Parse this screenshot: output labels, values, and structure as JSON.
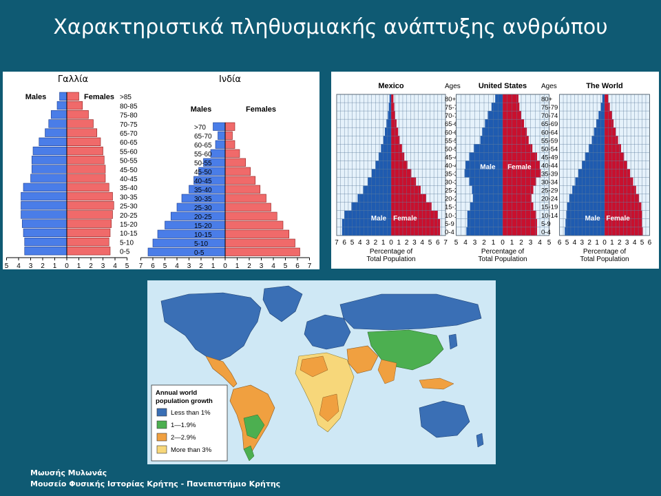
{
  "slide": {
    "title": "Χαρακτηριστικά πληθυσμιακής ανάπτυξης ανθρώπου",
    "footer_line1": "Μωυσής Μυλωνάς",
    "footer_line2": "Μουσείο Φυσικής Ιστορίας Κρήτης - Πανεπιστήμιο Κρήτης"
  },
  "colors": {
    "male": "#4a7de8",
    "female": "#f06a6a",
    "grid_male": "#1f5bb0",
    "grid_female": "#c8102e",
    "ocean": "#cfe8f5",
    "land_blue": "#3a6fb5",
    "land_green": "#4caf50",
    "land_orange": "#f0a040",
    "land_yellow": "#f7d77a"
  },
  "chart_data": [
    {
      "type": "bar",
      "title": "Γαλλία",
      "male_label": "Males",
      "female_label": "Females",
      "categories": [
        ">85",
        "80-85",
        "75-80",
        "70-75",
        "65-70",
        "60-65",
        "55-60",
        "50-55",
        "45-50",
        "40-45",
        "35-40",
        "30-35",
        "25-30",
        "20-25",
        "15-20",
        "10-15",
        "5-10",
        "0-5"
      ],
      "series": [
        {
          "name": "Males",
          "values": [
            0.6,
            0.8,
            1.3,
            1.5,
            1.8,
            2.3,
            2.8,
            2.9,
            2.9,
            3.0,
            3.6,
            3.8,
            3.8,
            3.8,
            3.7,
            3.6,
            3.5,
            3.5
          ]
        },
        {
          "name": "Females",
          "values": [
            1.0,
            1.3,
            1.8,
            2.2,
            2.5,
            2.8,
            3.0,
            3.1,
            3.2,
            3.2,
            3.5,
            3.8,
            3.9,
            3.8,
            3.7,
            3.6,
            3.5,
            3.6
          ]
        }
      ],
      "x_ticks": [
        "5",
        "4",
        "3",
        "2",
        "1",
        "0",
        "1",
        "2",
        "3",
        "4",
        "5"
      ]
    },
    {
      "type": "bar",
      "title": "Ινδία",
      "male_label": "Males",
      "female_label": "Females",
      "categories": [
        ">70",
        "65-70",
        "60-65",
        "55-60",
        "50-55",
        "45-50",
        "40-45",
        "35-40",
        "30-35",
        "25-30",
        "20-25",
        "15-20",
        "10-15",
        "5-10",
        "0-5"
      ],
      "series": [
        {
          "name": "Males",
          "values": [
            1.0,
            0.6,
            0.8,
            1.2,
            1.8,
            2.2,
            2.6,
            3.0,
            3.6,
            4.0,
            4.5,
            5.0,
            5.6,
            6.0,
            6.4
          ]
        },
        {
          "name": "Females",
          "values": [
            0.8,
            0.6,
            0.8,
            1.2,
            1.7,
            2.1,
            2.5,
            2.9,
            3.4,
            3.8,
            4.3,
            4.8,
            5.3,
            5.8,
            6.2
          ]
        }
      ],
      "x_ticks": [
        "7",
        "6",
        "5",
        "4",
        "3",
        "2",
        "1",
        "0",
        "1",
        "2",
        "3",
        "4",
        "5",
        "6",
        "7"
      ]
    },
    {
      "type": "bar",
      "title": "Mexico",
      "ages_label": "Ages",
      "male_label": "Male",
      "female_label": "Female",
      "xlabel": "Percentage of Total Population",
      "categories": [
        "80+",
        "75-79",
        "70-74",
        "65-69",
        "60-64",
        "55-59",
        "50-54",
        "45-49",
        "40-44",
        "35-39",
        "30-34",
        "25-29",
        "20-24",
        "15-19",
        "10-14",
        "5-9",
        "0-4"
      ],
      "series": [
        {
          "name": "Male",
          "values": [
            0.2,
            0.3,
            0.4,
            0.6,
            0.8,
            1.0,
            1.3,
            1.6,
            2.0,
            2.5,
            3.0,
            3.6,
            4.3,
            5.1,
            6.0,
            6.3,
            6.3
          ]
        },
        {
          "name": "Female",
          "values": [
            0.3,
            0.4,
            0.5,
            0.7,
            0.9,
            1.1,
            1.4,
            1.7,
            2.1,
            2.6,
            3.2,
            3.8,
            4.5,
            5.2,
            6.0,
            6.3,
            6.3
          ]
        }
      ],
      "x_ticks": [
        "7",
        "6",
        "5",
        "4",
        "3",
        "2",
        "1",
        "0",
        "1",
        "2",
        "3",
        "4",
        "5",
        "6",
        "7"
      ]
    },
    {
      "type": "bar",
      "title": "United States",
      "ages_label": "Ages",
      "male_label": "Male",
      "female_label": "Female",
      "xlabel": "Percentage of Total Population",
      "categories": [
        "80+",
        "75-79",
        "70-74",
        "65-69",
        "60-64",
        "55-59",
        "50-54",
        "45-49",
        "40-44",
        "35-39",
        "30-34",
        "25-29",
        "20-24",
        "15-19",
        "10-14",
        "5-9",
        "0-4"
      ],
      "series": [
        {
          "name": "Male",
          "values": [
            0.8,
            1.2,
            1.6,
            1.9,
            2.2,
            2.4,
            3.1,
            3.6,
            4.0,
            4.1,
            3.6,
            3.3,
            3.2,
            3.5,
            3.8,
            3.8,
            3.9
          ]
        },
        {
          "name": "Female",
          "values": [
            1.7,
            1.8,
            2.0,
            2.3,
            2.6,
            2.8,
            3.2,
            3.7,
            4.0,
            4.1,
            3.6,
            3.3,
            3.1,
            3.3,
            3.6,
            3.7,
            3.7
          ]
        }
      ],
      "x_ticks": [
        "5",
        "4",
        "3",
        "2",
        "1",
        "0",
        "1",
        "2",
        "3",
        "4",
        "5"
      ]
    },
    {
      "type": "bar",
      "title": "The World",
      "ages_label": "Ages",
      "male_label": "Male",
      "female_label": "Female",
      "xlabel": "Percentage of Total Population",
      "categories": [
        "80+",
        "75-79",
        "70-74",
        "65-69",
        "60-64",
        "55-59",
        "50-54",
        "45-49",
        "40-44",
        "35-39",
        "30-34",
        "25-29",
        "20-24",
        "15-19",
        "10-14",
        "5-9",
        "0-4"
      ],
      "series": [
        {
          "name": "Male",
          "values": [
            0.3,
            0.5,
            0.8,
            1.1,
            1.4,
            1.7,
            2.1,
            2.6,
            3.0,
            3.5,
            3.9,
            4.3,
            4.7,
            5.0,
            5.1,
            5.2,
            5.3
          ]
        },
        {
          "name": "Female",
          "values": [
            0.5,
            0.7,
            1.0,
            1.2,
            1.5,
            1.8,
            2.2,
            2.6,
            3.0,
            3.4,
            3.8,
            4.2,
            4.6,
            4.9,
            5.0,
            5.0,
            5.1
          ]
        }
      ],
      "x_ticks": [
        "6",
        "5",
        "4",
        "3",
        "2",
        "1",
        "0",
        "1",
        "2",
        "3",
        "4",
        "5",
        "6"
      ]
    }
  ],
  "map": {
    "legend_title_line1": "Annual world",
    "legend_title_line2": "population growth",
    "legend_items": [
      {
        "label": "Less than 1%",
        "color": "#3a6fb5"
      },
      {
        "label": "1—1.9%",
        "color": "#4caf50"
      },
      {
        "label": "2—2.9%",
        "color": "#f0a040"
      },
      {
        "label": "More than 3%",
        "color": "#f7d77a"
      }
    ]
  }
}
